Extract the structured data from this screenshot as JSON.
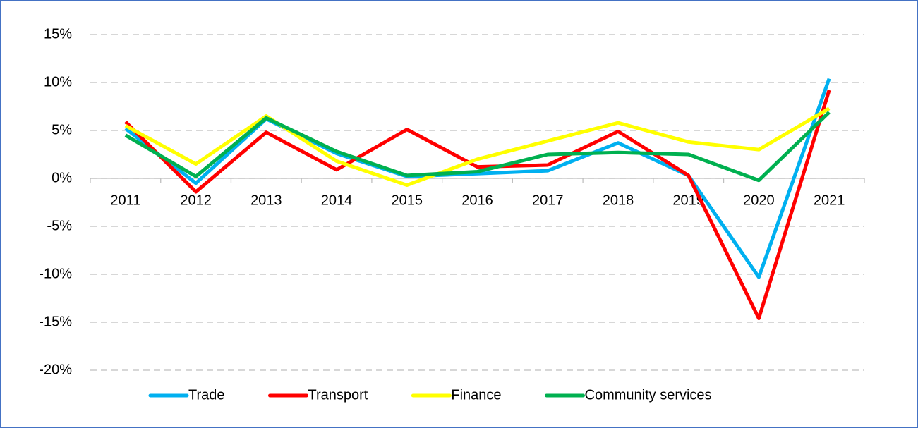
{
  "chart_data": {
    "type": "line",
    "categories": [
      "2011",
      "2012",
      "2013",
      "2014",
      "2015",
      "2016",
      "2017",
      "2018",
      "2019",
      "2020",
      "2021"
    ],
    "series": [
      {
        "name": "Trade",
        "color": "#00b0f0",
        "values": [
          5.2,
          -0.5,
          6.2,
          2.6,
          0.2,
          0.5,
          0.8,
          3.7,
          0.3,
          -10.3,
          10.4
        ]
      },
      {
        "name": "Transport",
        "color": "#ff0000",
        "values": [
          5.9,
          -1.4,
          4.8,
          0.9,
          5.1,
          1.2,
          1.4,
          4.9,
          0.3,
          -14.6,
          9.2
        ]
      },
      {
        "name": "Finance",
        "color": "#ffff00",
        "values": [
          5.5,
          1.5,
          6.5,
          1.8,
          -0.7,
          2.0,
          3.9,
          5.8,
          3.8,
          3.0,
          7.3
        ]
      },
      {
        "name": "Community services",
        "color": "#00b050",
        "values": [
          4.5,
          0.2,
          6.3,
          2.8,
          0.3,
          0.7,
          2.5,
          2.7,
          2.5,
          -0.2,
          6.9
        ]
      }
    ],
    "ylim": [
      -20,
      15
    ],
    "yticks": [
      {
        "value": -20,
        "label": "-20%"
      },
      {
        "value": -15,
        "label": "-15%"
      },
      {
        "value": -10,
        "label": "-10%"
      },
      {
        "value": -5,
        "label": "-5%"
      },
      {
        "value": 0,
        "label": "0%"
      },
      {
        "value": 5,
        "label": "5%"
      },
      {
        "value": 10,
        "label": "10%"
      },
      {
        "value": 15,
        "label": "15%"
      }
    ],
    "grid": true,
    "legend": "bottom"
  }
}
